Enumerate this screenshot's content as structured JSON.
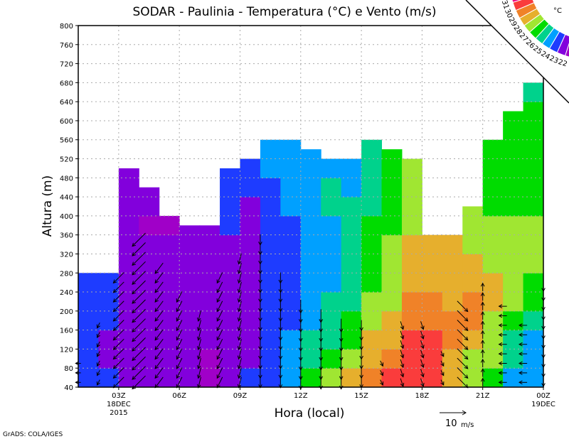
{
  "chart_data": {
    "type": "heatmap",
    "title": "SODAR - Paulinia - Temperatura (°C) e Vento (m/s)",
    "xlabel": "Hora (local)",
    "ylabel": "Altura (m)",
    "ylim": [
      40,
      800
    ],
    "xlim_hours_z": [
      1,
      24
    ],
    "grid": true,
    "yticks": [
      40,
      80,
      120,
      160,
      200,
      240,
      280,
      320,
      360,
      400,
      440,
      480,
      520,
      560,
      600,
      640,
      680,
      720,
      760,
      800
    ],
    "xticks": [
      {
        "hour": 3,
        "label": "03Z",
        "sub1": "18DEC",
        "sub2": "2015"
      },
      {
        "hour": 6,
        "label": "06Z"
      },
      {
        "hour": 9,
        "label": "09Z"
      },
      {
        "hour": 12,
        "label": "12Z"
      },
      {
        "hour": 15,
        "label": "15Z"
      },
      {
        "hour": 18,
        "label": "18Z"
      },
      {
        "hour": 21,
        "label": "21Z"
      },
      {
        "hour": 24,
        "label": "00Z",
        "sub1": "19DEC"
      }
    ],
    "colorbar": {
      "unit": "°C",
      "levels": [
        22,
        23,
        24,
        25,
        26,
        27,
        28,
        29,
        30,
        31
      ],
      "colors": [
        "#a000c8",
        "#8200dc",
        "#1e3cff",
        "#00a0ff",
        "#00d28c",
        "#00dc00",
        "#a0e632",
        "#e6af2d",
        "#f08228",
        "#fa3c3c",
        "#f00082"
      ]
    },
    "temperature_columns": [
      {
        "hour": 1,
        "top": 280,
        "temps": [
          23.5,
          23.5,
          23.5,
          23.5,
          23.5,
          23.5
        ]
      },
      {
        "hour": 2,
        "top": 280,
        "temps": [
          23.5,
          22.5,
          22.5,
          23.5,
          23.5,
          23.5
        ]
      },
      {
        "hour": 3,
        "top": 500,
        "temps": [
          22.5,
          22.5,
          22.5,
          22.5,
          22.5,
          22.5,
          22.5,
          22.5,
          22.5,
          22.5,
          22.5,
          22.5
        ]
      },
      {
        "hour": 4,
        "top": 460,
        "temps": [
          22.5,
          22.5,
          22.5,
          22.5,
          22.5,
          22.5,
          22.5,
          22.5,
          21.5,
          22.5,
          22.5
        ]
      },
      {
        "hour": 5,
        "top": 400,
        "temps": [
          22.5,
          22.5,
          22.5,
          22.5,
          22.5,
          22.5,
          22.5,
          22.5,
          21.5
        ]
      },
      {
        "hour": 6,
        "top": 380,
        "temps": [
          22.5,
          22.5,
          22.5,
          22.5,
          22.5,
          22.5,
          22.5,
          22.5,
          22.5
        ]
      },
      {
        "hour": 7,
        "top": 380,
        "temps": [
          21.5,
          21.5,
          22.5,
          22.5,
          22.5,
          22.5,
          22.5,
          22.5,
          22.5
        ]
      },
      {
        "hour": 8,
        "top": 500,
        "temps": [
          22.5,
          22.5,
          22.5,
          22.5,
          22.5,
          22.5,
          22.5,
          22.5,
          23.5,
          23.5,
          23.5,
          23.5
        ]
      },
      {
        "hour": 9,
        "top": 520,
        "temps": [
          23.5,
          22.5,
          22.5,
          22.5,
          22.5,
          22.5,
          22.5,
          22.5,
          22.5,
          22.5,
          23.5,
          23.5
        ]
      },
      {
        "hour": 10,
        "top": 560,
        "temps": [
          23.5,
          23.5,
          23.5,
          23.5,
          23.5,
          23.5,
          23.5,
          23.5,
          23.5,
          23.5,
          23.5,
          24.5,
          24.5
        ]
      },
      {
        "hour": 11,
        "top": 560,
        "temps": [
          24.5,
          24.5,
          24.5,
          23.5,
          23.5,
          23.5,
          23.5,
          23.5,
          23.5,
          24.5,
          24.5,
          24.5,
          24.5
        ]
      },
      {
        "hour": 12,
        "top": 540,
        "temps": [
          26.5,
          25.5,
          25.5,
          24.5,
          24.5,
          24.5,
          24.5,
          24.5,
          24.5,
          24.5,
          24.5,
          24.5,
          24.5
        ]
      },
      {
        "hour": 13,
        "top": 520,
        "temps": [
          27.5,
          26.5,
          25.5,
          25.5,
          25.5,
          24.5,
          24.5,
          24.5,
          24.5,
          25.5,
          25.5,
          24.5
        ]
      },
      {
        "hour": 14,
        "top": 520,
        "temps": [
          28.5,
          27.5,
          26.5,
          26.5,
          25.5,
          25.5,
          25.5,
          25.5,
          25.5,
          25.5,
          24.5,
          24.5
        ]
      },
      {
        "hour": 15,
        "top": 560,
        "temps": [
          29.5,
          28.5,
          28.5,
          27.5,
          27.5,
          26.5,
          26.5,
          26.5,
          26.5,
          25.5,
          25.5,
          25.5,
          25.5
        ]
      },
      {
        "hour": 16,
        "top": 540,
        "temps": [
          30.5,
          29.5,
          28.5,
          28.5,
          27.5,
          27.5,
          27.5,
          27.5,
          26.5,
          26.5,
          26.5,
          26.5,
          26.5
        ]
      },
      {
        "hour": 17,
        "top": 520,
        "temps": [
          30.5,
          30.5,
          30.5,
          29.5,
          29.5,
          28.5,
          28.5,
          28.5,
          27.5,
          27.5,
          27.5,
          27.5
        ]
      },
      {
        "hour": 18,
        "top": 360,
        "temps": [
          30.5,
          30.5,
          30.5,
          29.5,
          29.5,
          28.5,
          28.5,
          28.5
        ]
      },
      {
        "hour": 19,
        "top": 360,
        "temps": [
          28.5,
          28.5,
          29.5,
          29.5,
          28.5,
          28.5,
          28.5,
          28.5
        ]
      },
      {
        "hour": 20,
        "top": 420,
        "temps": [
          27.5,
          27.5,
          28.5,
          29.5,
          29.5,
          28.5,
          28.5,
          27.5,
          27.5,
          27.5
        ]
      },
      {
        "hour": 21,
        "top": 560,
        "temps": [
          26.5,
          27.5,
          27.5,
          27.5,
          28.5,
          28.5,
          27.5,
          27.5,
          27.5,
          26.5,
          26.5,
          26.5,
          26.5
        ]
      },
      {
        "hour": 22,
        "top": 620,
        "temps": [
          24.5,
          25.5,
          25.5,
          26.5,
          27.5,
          27.5,
          27.5,
          27.5,
          27.5,
          26.5,
          26.5,
          26.5,
          26.5,
          26.5,
          26.5
        ]
      },
      {
        "hour": 23,
        "top": 680,
        "temps": [
          24.5,
          24.5,
          24.5,
          25.5,
          26.5,
          26.5,
          27.5,
          27.5,
          27.5,
          26.5,
          26.5,
          26.5,
          26.5,
          26.5,
          26.5,
          25.5
        ]
      }
    ],
    "wind_columns": [
      {
        "hour": 1,
        "u": -2,
        "v": 0,
        "max_height": 100
      },
      {
        "hour": 2,
        "u": -1,
        "v": -2,
        "max_height": 180
      },
      {
        "hour": 3,
        "u": -4,
        "v": -4,
        "max_height": 280
      },
      {
        "hour": 4,
        "u": -5,
        "v": -5,
        "max_height": 360
      },
      {
        "hour": 5,
        "u": -3,
        "v": -4,
        "max_height": 300
      },
      {
        "hour": 6,
        "u": -2,
        "v": -4,
        "max_height": 240
      },
      {
        "hour": 7,
        "u": -1,
        "v": -4,
        "max_height": 200
      },
      {
        "hour": 8,
        "u": -2,
        "v": -4,
        "max_height": 280
      },
      {
        "hour": 9,
        "u": -1,
        "v": -4,
        "max_height": 320
      },
      {
        "hour": 10,
        "u": 0,
        "v": -4,
        "max_height": 360
      },
      {
        "hour": 11,
        "u": 0,
        "v": -4,
        "max_height": 280
      },
      {
        "hour": 12,
        "u": 0,
        "v": -5,
        "max_height": 220
      },
      {
        "hour": 13,
        "u": 0,
        "v": -5,
        "max_height": 200
      },
      {
        "hour": 14,
        "u": 0,
        "v": -5,
        "max_height": 180
      },
      {
        "hour": 15,
        "u": 0,
        "v": -4,
        "max_height": 180
      },
      {
        "hour": 16,
        "u": 1,
        "v": -2,
        "max_height": 100
      },
      {
        "hour": 17,
        "u": 1,
        "v": -3,
        "max_height": 180
      },
      {
        "hour": 18,
        "u": 1,
        "v": -3,
        "max_height": 180
      },
      {
        "hour": 19,
        "u": 1,
        "v": -2,
        "max_height": 120
      },
      {
        "hour": 20,
        "u": 4,
        "v": -4,
        "max_height": 220
      },
      {
        "hour": 21,
        "u": 0,
        "v": 3,
        "max_height": 260
      },
      {
        "hour": 22,
        "u": -3,
        "v": 0,
        "max_height": 220
      },
      {
        "hour": 23,
        "u": -3,
        "v": 0,
        "max_height": 180
      },
      {
        "hour": 24,
        "u": 0,
        "v": -3,
        "max_height": 260
      }
    ],
    "reference_vector": {
      "speed": 10,
      "label_value": "10",
      "label_unit": "m/s"
    }
  },
  "footer": "GrADS: COLA/IGES"
}
